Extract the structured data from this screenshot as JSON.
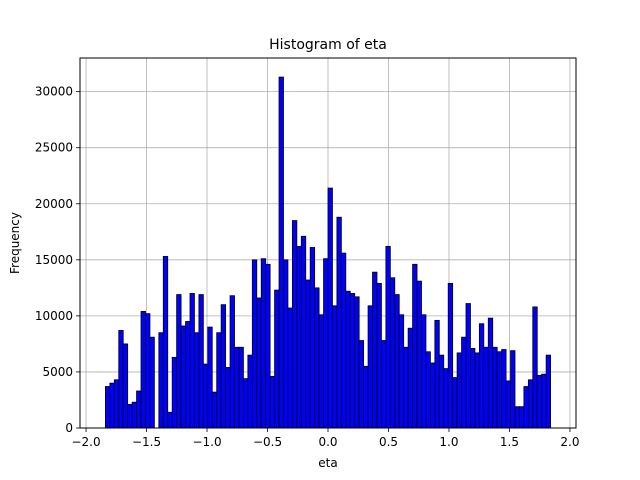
{
  "chart_data": {
    "type": "bar",
    "title": "Histogram of eta",
    "xlabel": "eta",
    "ylabel": "Frequency",
    "xlim": [
      -2.05,
      2.05
    ],
    "ylim": [
      0,
      33000
    ],
    "xticks": [
      -2.0,
      -1.5,
      -1.0,
      -0.5,
      0.0,
      0.5,
      1.0,
      1.5,
      2.0
    ],
    "xtick_labels": [
      "−2.0",
      "−1.5",
      "−1.0",
      "−0.5",
      "0.0",
      "0.5",
      "1.0",
      "1.5",
      "2.0"
    ],
    "yticks": [
      0,
      5000,
      10000,
      15000,
      20000,
      25000,
      30000
    ],
    "ytick_labels": [
      "0",
      "5000",
      "10000",
      "15000",
      "20000",
      "25000",
      "30000"
    ],
    "grid": true,
    "bins": {
      "start": -1.84,
      "end": 1.84,
      "count": 100
    },
    "values": [
      3700,
      4000,
      4300,
      8700,
      7500,
      2100,
      2300,
      3300,
      10400,
      10200,
      8100,
      0,
      8500,
      15300,
      1400,
      6300,
      11900,
      9100,
      9500,
      12000,
      8500,
      11900,
      5700,
      9000,
      3200,
      8500,
      11000,
      5400,
      11800,
      7200,
      7200,
      4400,
      6500,
      15000,
      11600,
      15100,
      14600,
      4600,
      12300,
      31300,
      15000,
      10700,
      18500,
      16200,
      17100,
      13200,
      16100,
      12500,
      10100,
      15100,
      21400,
      10900,
      18800,
      15600,
      12200,
      12000,
      11700,
      7800,
      5500,
      10900,
      13900,
      12900,
      7800,
      16200,
      13400,
      11900,
      10100,
      7200,
      8900,
      14600,
      13100,
      10100,
      6800,
      5800,
      9600,
      6500,
      5300,
      12900,
      4500,
      6700,
      8100,
      11100,
      7100,
      6700,
      9300,
      7200,
      9800,
      7200,
      6800,
      7000,
      4200,
      6900,
      1900,
      1900,
      3700,
      4300,
      10800,
      4700,
      4800,
      6500
    ],
    "bar_color": "#0000ff",
    "edge_color": "#000000",
    "grid_color": "#b0b0b0"
  }
}
